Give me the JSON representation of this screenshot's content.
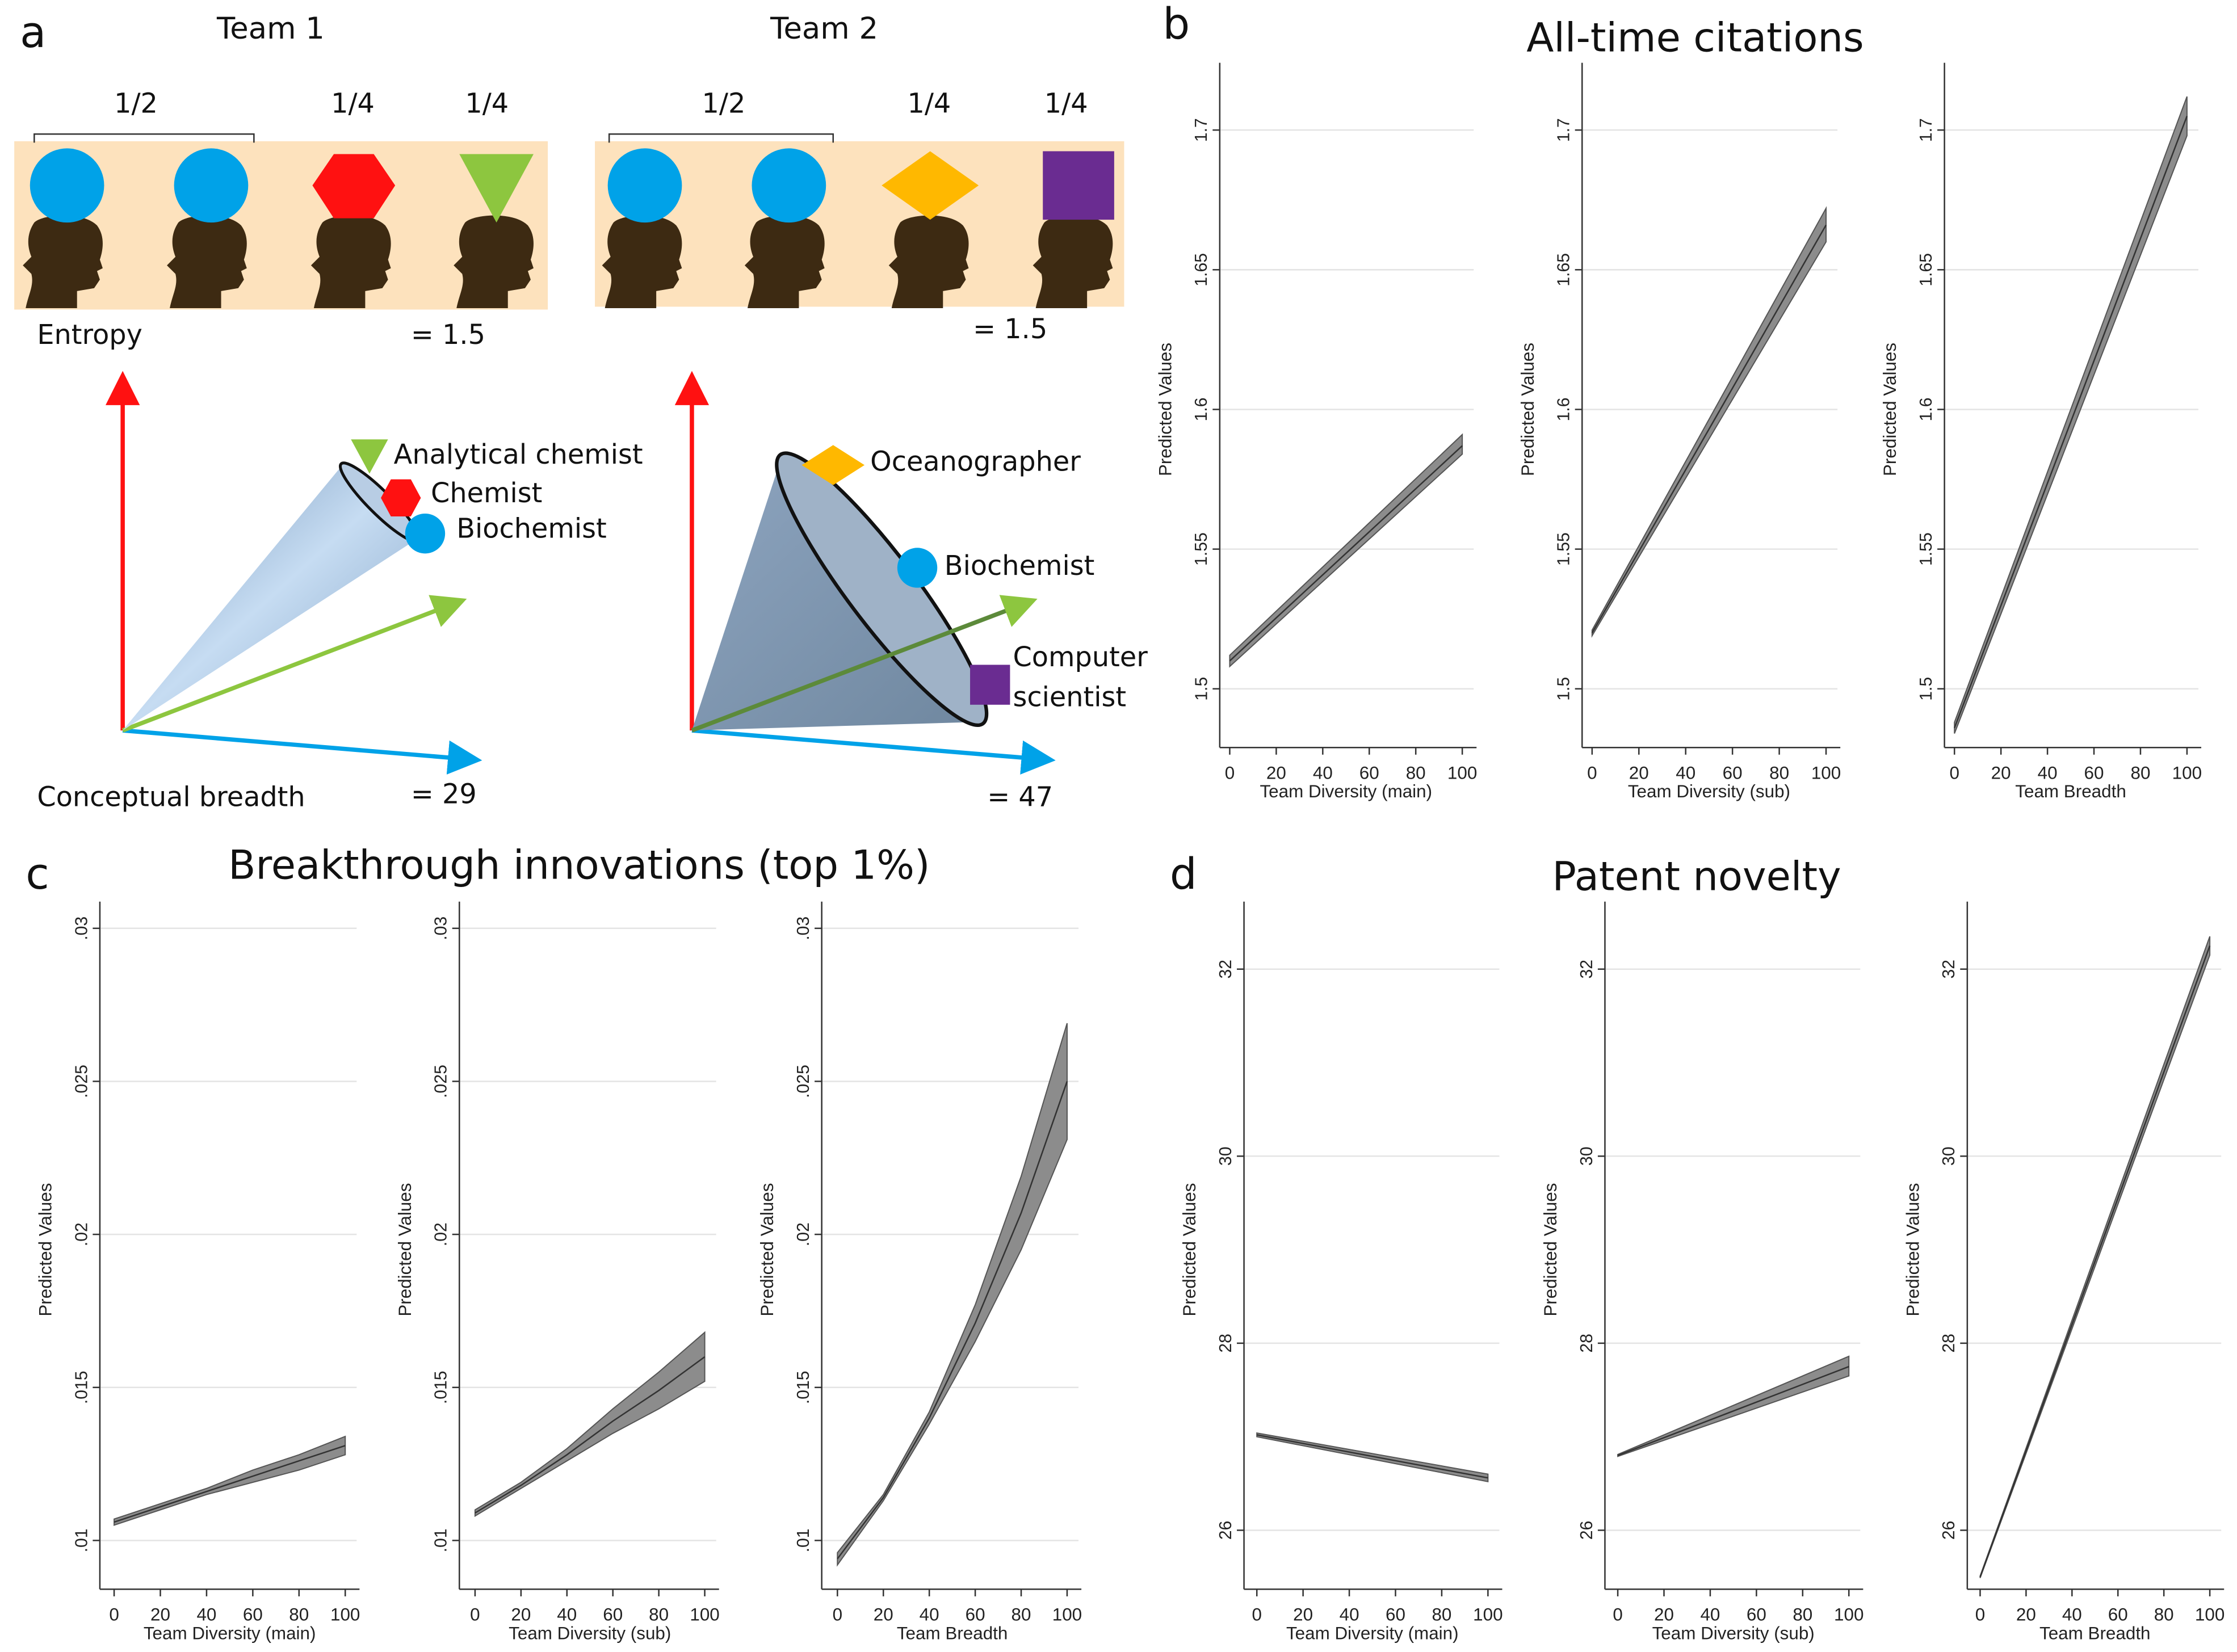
{
  "panel_a": {
    "label": "a",
    "team1": {
      "title": "Team 1",
      "fractions": [
        "1/2",
        "1/4",
        "1/4"
      ],
      "entropy_label": "Entropy",
      "entropy_value": "= 1.5",
      "breadth_label": "Conceptual breadth",
      "breadth_value": "= 29",
      "roles": [
        "Analytical chemist",
        "Chemist",
        "Biochemist"
      ]
    },
    "team2": {
      "title": "Team 2",
      "fractions": [
        "1/2",
        "1/4",
        "1/4"
      ],
      "entropy_value": "= 1.5",
      "breadth_value": "= 47",
      "roles": [
        "Oceanographer",
        "Biochemist",
        "Computer",
        "scientist"
      ]
    },
    "colors": {
      "blue": "#00a2e8",
      "red": "#ff1111",
      "green": "#8dc63f",
      "orange": "#ffb800",
      "purple": "#6a2c91",
      "head": "#3d2a12",
      "strip": "#fde2bd"
    }
  },
  "panel_b": {
    "label": "b",
    "title": "All-time citations"
  },
  "panel_c": {
    "label": "c",
    "title": "Breakthrough innovations (top 1%)"
  },
  "panel_d": {
    "label": "d",
    "title": "Patent novelty"
  },
  "chart_data": [
    {
      "type": "line",
      "panel": "b",
      "xlabel": "Team Diversity (main)",
      "ylabel": "Predicted Values",
      "x": [
        0,
        100
      ],
      "ylim": [
        1.48,
        1.72
      ],
      "yticks": [
        "1.5",
        "1.55",
        "1.6",
        "1.65",
        "1.7"
      ],
      "ytick_vals": [
        1.5,
        1.55,
        1.6,
        1.65,
        1.7
      ],
      "xticks": [
        0,
        20,
        40,
        60,
        80,
        100
      ],
      "series": [
        {
          "values": [
            1.51,
            1.587
          ],
          "lower": [
            1.508,
            1.584
          ],
          "upper": [
            1.512,
            1.591
          ]
        }
      ]
    },
    {
      "type": "line",
      "panel": "b",
      "xlabel": "Team Diversity (sub)",
      "ylabel": "Predicted Values",
      "x": [
        0,
        100
      ],
      "ylim": [
        1.48,
        1.72
      ],
      "yticks": [
        "1.5",
        "1.55",
        "1.6",
        "1.65",
        "1.7"
      ],
      "ytick_vals": [
        1.5,
        1.55,
        1.6,
        1.65,
        1.7
      ],
      "xticks": [
        0,
        20,
        40,
        60,
        80,
        100
      ],
      "series": [
        {
          "values": [
            1.52,
            1.666
          ],
          "lower": [
            1.519,
            1.66
          ],
          "upper": [
            1.521,
            1.672
          ]
        }
      ]
    },
    {
      "type": "line",
      "panel": "b",
      "xlabel": "Team Breadth",
      "ylabel": "Predicted Values",
      "x": [
        0,
        100
      ],
      "ylim": [
        1.48,
        1.72
      ],
      "yticks": [
        "1.5",
        "1.55",
        "1.6",
        "1.65",
        "1.7"
      ],
      "ytick_vals": [
        1.5,
        1.55,
        1.6,
        1.65,
        1.7
      ],
      "xticks": [
        0,
        20,
        40,
        60,
        80,
        100
      ],
      "series": [
        {
          "values": [
            1.486,
            1.705
          ],
          "lower": [
            1.484,
            1.698
          ],
          "upper": [
            1.488,
            1.712
          ]
        }
      ]
    },
    {
      "type": "line",
      "panel": "c",
      "xlabel": "Team Diversity (main)",
      "ylabel": "Predicted Values",
      "x": [
        0,
        20,
        40,
        60,
        80,
        100
      ],
      "ylim": [
        0.0085,
        0.0305
      ],
      "yticks": [
        ".01",
        ".015",
        ".02",
        ".025",
        ".03"
      ],
      "ytick_vals": [
        0.01,
        0.015,
        0.02,
        0.025,
        0.03
      ],
      "xticks": [
        0,
        20,
        40,
        60,
        80,
        100
      ],
      "series": [
        {
          "values": [
            0.0106,
            0.0111,
            0.0116,
            0.0121,
            0.0126,
            0.0131
          ],
          "lower": [
            0.0105,
            0.011,
            0.0115,
            0.0119,
            0.0123,
            0.0128
          ],
          "upper": [
            0.0107,
            0.0112,
            0.0117,
            0.0123,
            0.0128,
            0.0134
          ]
        }
      ]
    },
    {
      "type": "line",
      "panel": "c",
      "xlabel": "Team Diversity (sub)",
      "ylabel": "Predicted Values",
      "x": [
        0,
        20,
        40,
        60,
        80,
        100
      ],
      "ylim": [
        0.0085,
        0.0305
      ],
      "yticks": [
        ".01",
        ".015",
        ".02",
        ".025",
        ".03"
      ],
      "ytick_vals": [
        0.01,
        0.015,
        0.02,
        0.025,
        0.03
      ],
      "xticks": [
        0,
        20,
        40,
        60,
        80,
        100
      ],
      "series": [
        {
          "values": [
            0.0109,
            0.0118,
            0.0128,
            0.0139,
            0.0149,
            0.016
          ],
          "lower": [
            0.0108,
            0.0117,
            0.0126,
            0.0135,
            0.0143,
            0.0152
          ],
          "upper": [
            0.011,
            0.0119,
            0.013,
            0.0143,
            0.0155,
            0.0168
          ]
        }
      ]
    },
    {
      "type": "line",
      "panel": "c",
      "xlabel": "Team Breadth",
      "ylabel": "Predicted Values",
      "x": [
        0,
        20,
        40,
        60,
        80,
        100
      ],
      "ylim": [
        0.0085,
        0.0305
      ],
      "yticks": [
        ".01",
        ".015",
        ".02",
        ".025",
        ".03"
      ],
      "ytick_vals": [
        0.01,
        0.015,
        0.02,
        0.025,
        0.03
      ],
      "xticks": [
        0,
        20,
        40,
        60,
        80,
        100
      ],
      "series": [
        {
          "values": [
            0.0094,
            0.0114,
            0.014,
            0.0171,
            0.0207,
            0.025
          ],
          "lower": [
            0.0092,
            0.0113,
            0.0138,
            0.0165,
            0.0195,
            0.0231
          ],
          "upper": [
            0.0096,
            0.0115,
            0.0142,
            0.0177,
            0.0219,
            0.0269
          ]
        }
      ]
    },
    {
      "type": "line",
      "panel": "d",
      "xlabel": "Team Diversity (main)",
      "ylabel": "Predicted Values",
      "x": [
        0,
        100
      ],
      "ylim": [
        25.4,
        32.6
      ],
      "yticks": [
        "26",
        "28",
        "30",
        "32"
      ],
      "ytick_vals": [
        26,
        28,
        30,
        32
      ],
      "xticks": [
        0,
        20,
        40,
        60,
        80,
        100
      ],
      "series": [
        {
          "values": [
            27.02,
            26.56
          ],
          "lower": [
            27.0,
            26.52
          ],
          "upper": [
            27.04,
            26.6
          ]
        }
      ]
    },
    {
      "type": "line",
      "panel": "d",
      "xlabel": "Team Diversity (sub)",
      "ylabel": "Predicted Values",
      "x": [
        0,
        100
      ],
      "ylim": [
        25.4,
        32.6
      ],
      "yticks": [
        "26",
        "28",
        "30",
        "32"
      ],
      "ytick_vals": [
        26,
        28,
        30,
        32
      ],
      "xticks": [
        0,
        20,
        40,
        60,
        80,
        100
      ],
      "series": [
        {
          "values": [
            26.8,
            27.75
          ],
          "lower": [
            26.79,
            27.65
          ],
          "upper": [
            26.81,
            27.86
          ]
        }
      ]
    },
    {
      "type": "line",
      "panel": "d",
      "xlabel": "Team Breadth",
      "ylabel": "Predicted Values",
      "x": [
        0,
        100
      ],
      "ylim": [
        25.4,
        32.6
      ],
      "yticks": [
        "26",
        "28",
        "30",
        "32"
      ],
      "ytick_vals": [
        26,
        28,
        30,
        32
      ],
      "xticks": [
        0,
        20,
        40,
        60,
        80,
        100
      ],
      "series": [
        {
          "values": [
            25.5,
            32.25
          ],
          "lower": [
            25.49,
            32.15
          ],
          "upper": [
            25.51,
            32.35
          ]
        }
      ]
    }
  ]
}
